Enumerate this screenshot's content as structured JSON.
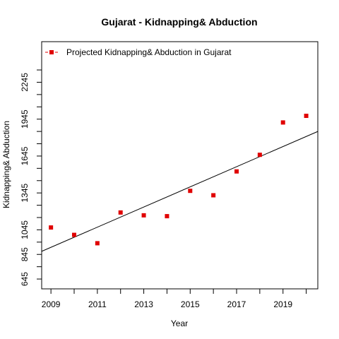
{
  "chart_data": {
    "type": "scatter",
    "title": "Gujarat  -  Kidnapping& Abduction",
    "xlabel": "Year",
    "ylabel": "Kidnapping& Abduction",
    "x": [
      2009,
      2010,
      2011,
      2012,
      2013,
      2014,
      2015,
      2016,
      2017,
      2018,
      2019,
      2020
    ],
    "series": [
      {
        "name": "Projected  Kidnapping& Abduction  in  Gujarat",
        "color": "#e00000",
        "values": [
          1064,
          1004,
          936,
          1186,
          1163,
          1156,
          1362,
          1326,
          1520,
          1655,
          1918,
          1972
        ]
      }
    ],
    "trend_line": {
      "color": "#000000",
      "at_2008_6": 870,
      "at_2020_5": 1845
    },
    "xlim": [
      2008.6,
      2020.5
    ],
    "ylim": [
      565,
      2575
    ],
    "x_ticks": [
      2009,
      2011,
      2013,
      2015,
      2017,
      2019
    ],
    "x_minor_ticks": [
      2010,
      2012,
      2014,
      2016,
      2018,
      2020
    ],
    "y_ticks": [
      645,
      845,
      1045,
      1345,
      1645,
      1945,
      2245
    ],
    "y_minor_ticks": [
      745,
      945,
      1145,
      1245,
      1445,
      1545,
      1745,
      1845,
      2045,
      2145,
      2345
    ],
    "legend_position": "top-left",
    "grid": false
  }
}
